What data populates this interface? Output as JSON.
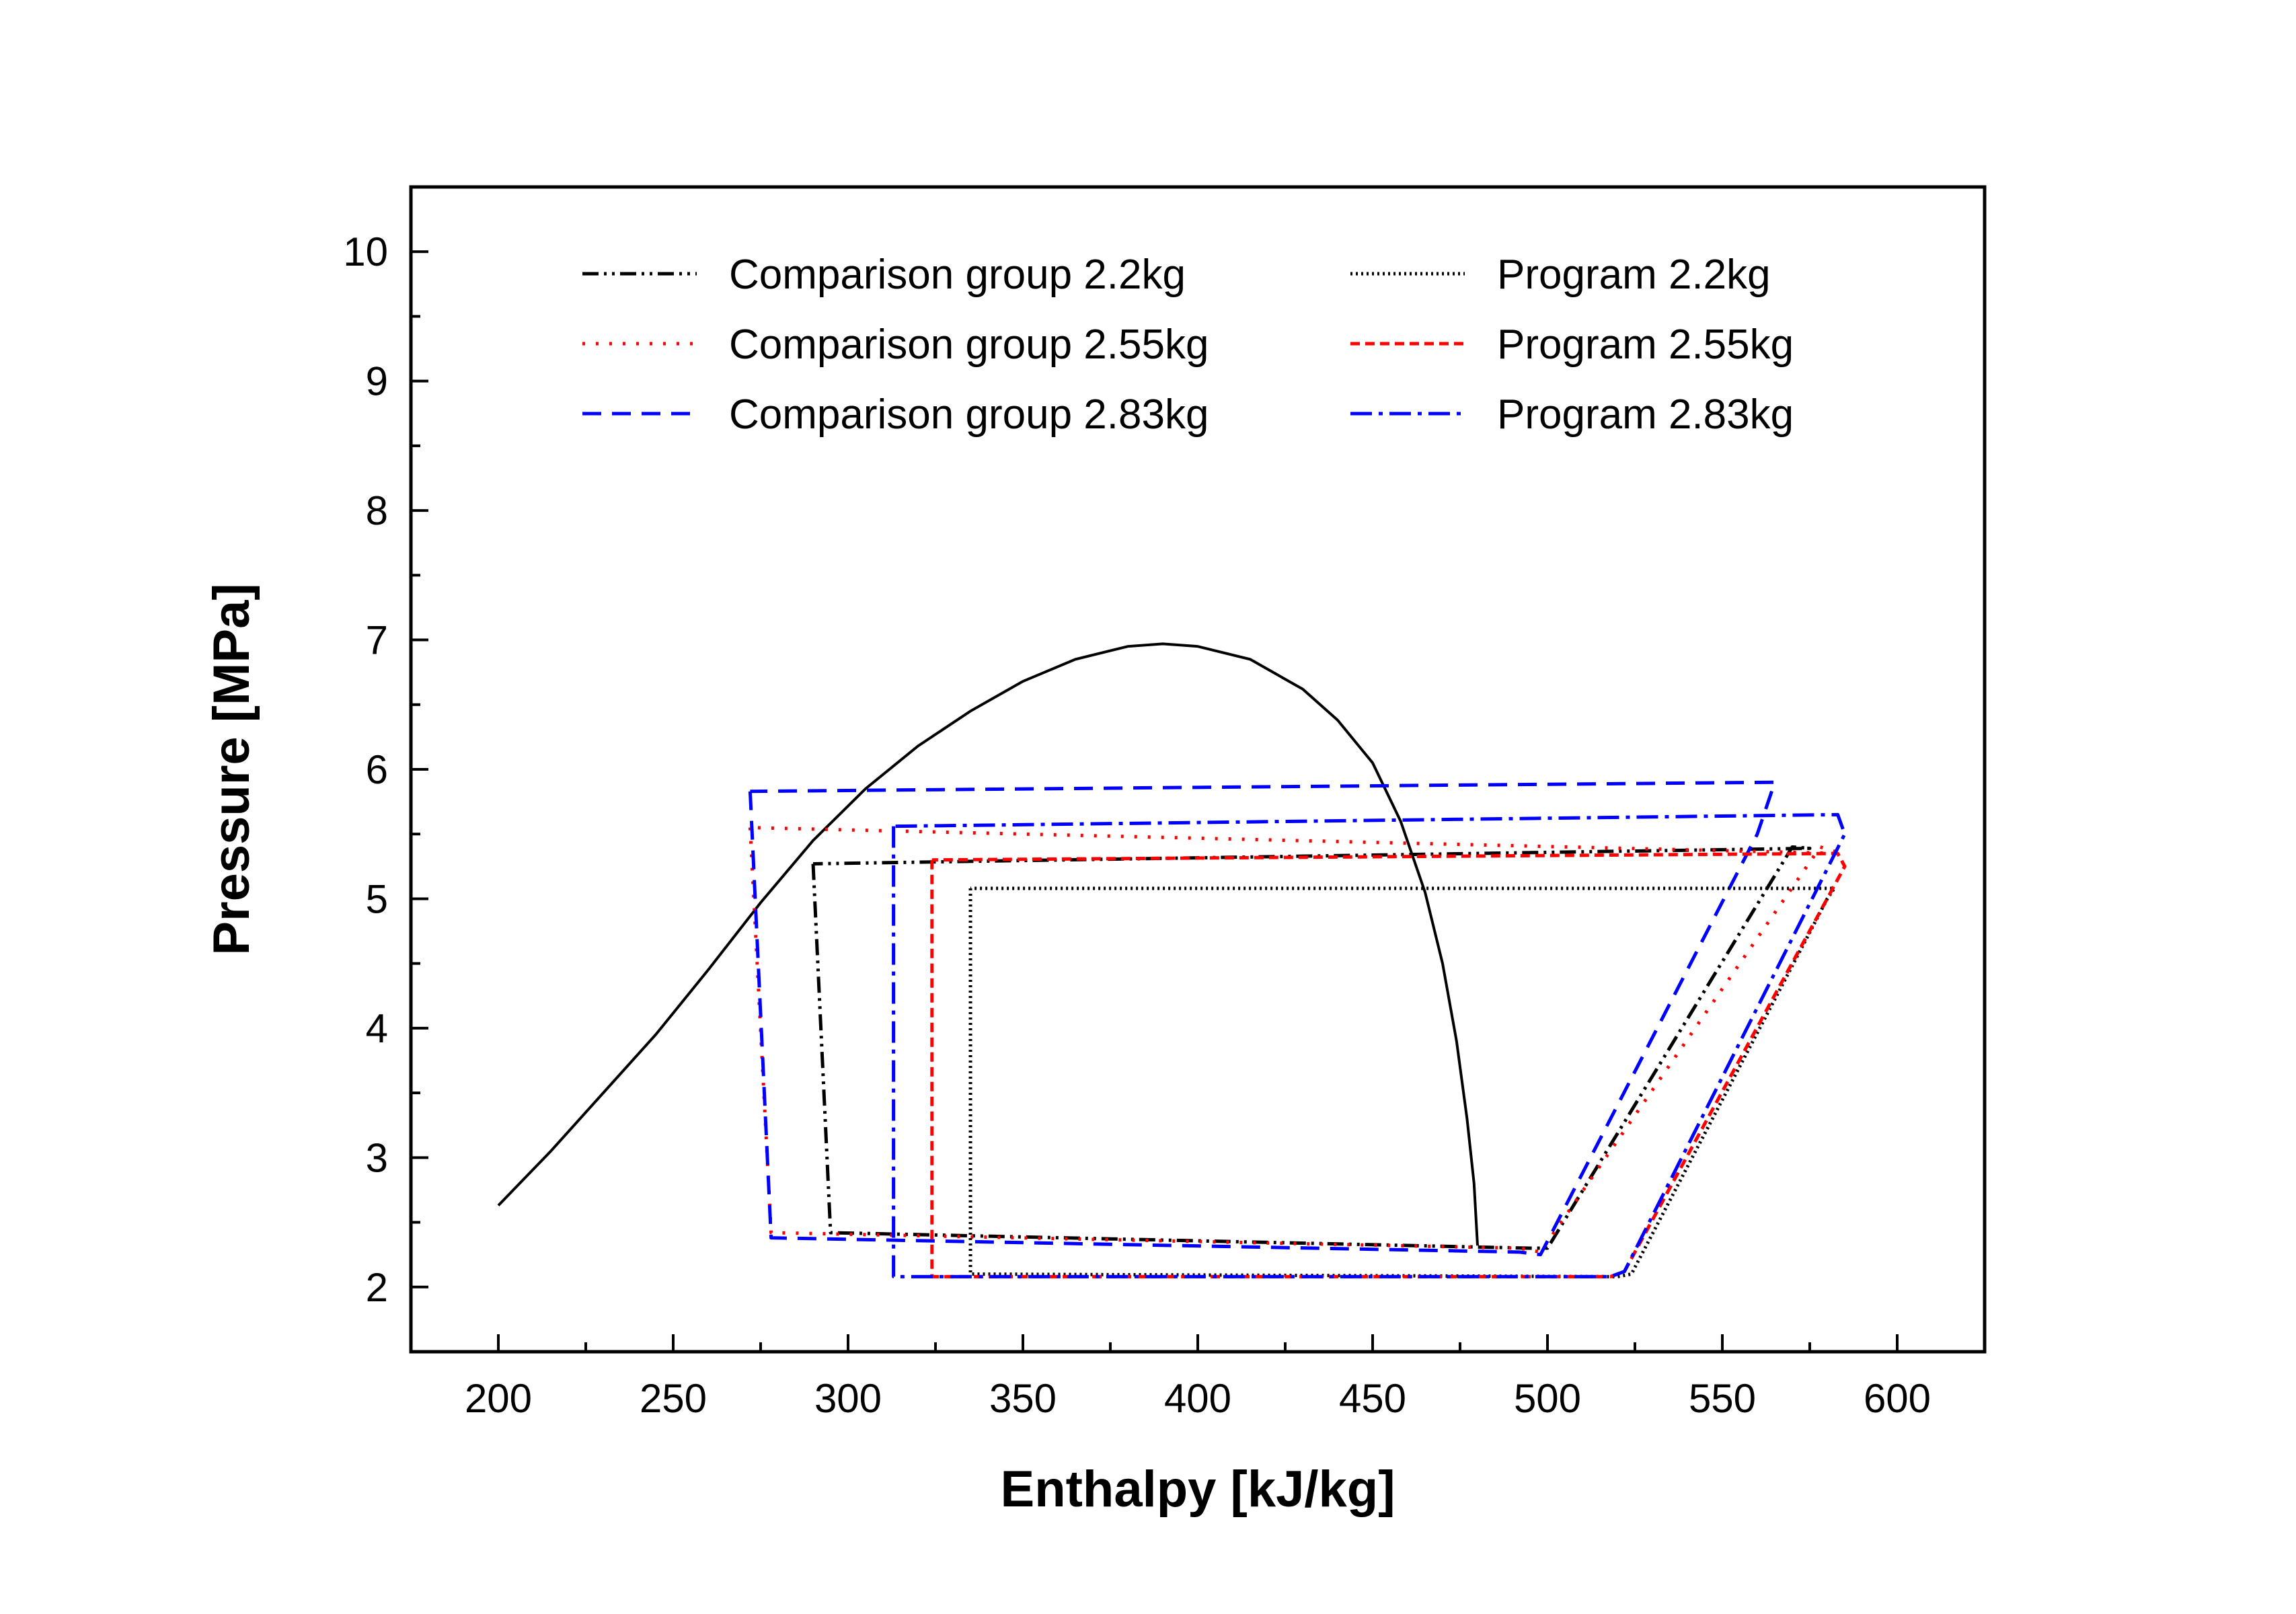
{
  "chart_data": {
    "type": "line",
    "xlabel": "Enthalpy [kJ/kg]",
    "ylabel": "Pressure [MPa]",
    "xlim": [
      175,
      625
    ],
    "ylim": [
      1.5,
      10.5
    ],
    "x_ticks": [
      200,
      250,
      300,
      350,
      400,
      450,
      500,
      550,
      600
    ],
    "y_ticks": [
      2,
      3,
      4,
      5,
      6,
      7,
      8,
      9,
      10
    ],
    "legend_position": "top",
    "grid": false,
    "saturation_dome": {
      "color": "#000000",
      "points": [
        [
          200,
          2.63
        ],
        [
          215,
          3.05
        ],
        [
          230,
          3.5
        ],
        [
          245,
          3.95
        ],
        [
          260,
          4.45
        ],
        [
          275,
          4.97
        ],
        [
          290,
          5.45
        ],
        [
          305,
          5.85
        ],
        [
          320,
          6.18
        ],
        [
          335,
          6.45
        ],
        [
          350,
          6.68
        ],
        [
          365,
          6.85
        ],
        [
          380,
          6.95
        ],
        [
          390,
          6.97
        ],
        [
          400,
          6.95
        ],
        [
          415,
          6.85
        ],
        [
          430,
          6.62
        ],
        [
          440,
          6.38
        ],
        [
          450,
          6.05
        ],
        [
          458,
          5.6
        ],
        [
          465,
          5.05
        ],
        [
          470,
          4.5
        ],
        [
          474,
          3.9
        ],
        [
          477,
          3.3
        ],
        [
          479,
          2.8
        ],
        [
          480,
          2.32
        ]
      ]
    },
    "series": [
      {
        "name": "Comparison group 2.2kg",
        "color": "#000000",
        "dash": "24,8,4,8,4,8",
        "points": [
          [
            290,
            5.27
          ],
          [
            295,
            2.42
          ],
          [
            495,
            2.3
          ],
          [
            500,
            2.3
          ],
          [
            570,
            5.4
          ],
          [
            575,
            5.39
          ],
          [
            290,
            5.27
          ]
        ]
      },
      {
        "name": "Comparison group 2.55kg",
        "color": "#ff0000",
        "dash": "4,16",
        "points": [
          [
            272,
            5.55
          ],
          [
            278,
            2.42
          ],
          [
            492,
            2.3
          ],
          [
            498,
            2.27
          ],
          [
            578,
            5.4
          ],
          [
            584,
            5.35
          ],
          [
            272,
            5.55
          ]
        ]
      },
      {
        "name": "Comparison group 2.83kg",
        "color": "#0000ff",
        "dash": "28,16",
        "points": [
          [
            272,
            5.83
          ],
          [
            278,
            2.38
          ],
          [
            492,
            2.27
          ],
          [
            498,
            2.25
          ],
          [
            560,
            5.5
          ],
          [
            565,
            5.9
          ],
          [
            272,
            5.83
          ]
        ]
      },
      {
        "name": "Program 2.2kg",
        "color": "#000000",
        "dash": "3,5",
        "points": [
          [
            335,
            5.08
          ],
          [
            335,
            2.1
          ],
          [
            520,
            2.08
          ],
          [
            524,
            2.1
          ],
          [
            580,
            5.0
          ],
          [
            582,
            5.08
          ],
          [
            335,
            5.08
          ]
        ]
      },
      {
        "name": "Program 2.55kg",
        "color": "#ff0000",
        "dash": "14,8",
        "points": [
          [
            324,
            5.3
          ],
          [
            324,
            2.08
          ],
          [
            518,
            2.08
          ],
          [
            522,
            2.12
          ],
          [
            585,
            5.25
          ],
          [
            583,
            5.35
          ],
          [
            324,
            5.3
          ]
        ]
      },
      {
        "name": "Program 2.83kg",
        "color": "#0000ff",
        "dash": "32,10,6,10",
        "points": [
          [
            313,
            5.56
          ],
          [
            313,
            2.08
          ],
          [
            518,
            2.08
          ],
          [
            522,
            2.12
          ],
          [
            585,
            5.5
          ],
          [
            583,
            5.65
          ],
          [
            313,
            5.56
          ]
        ]
      }
    ]
  }
}
